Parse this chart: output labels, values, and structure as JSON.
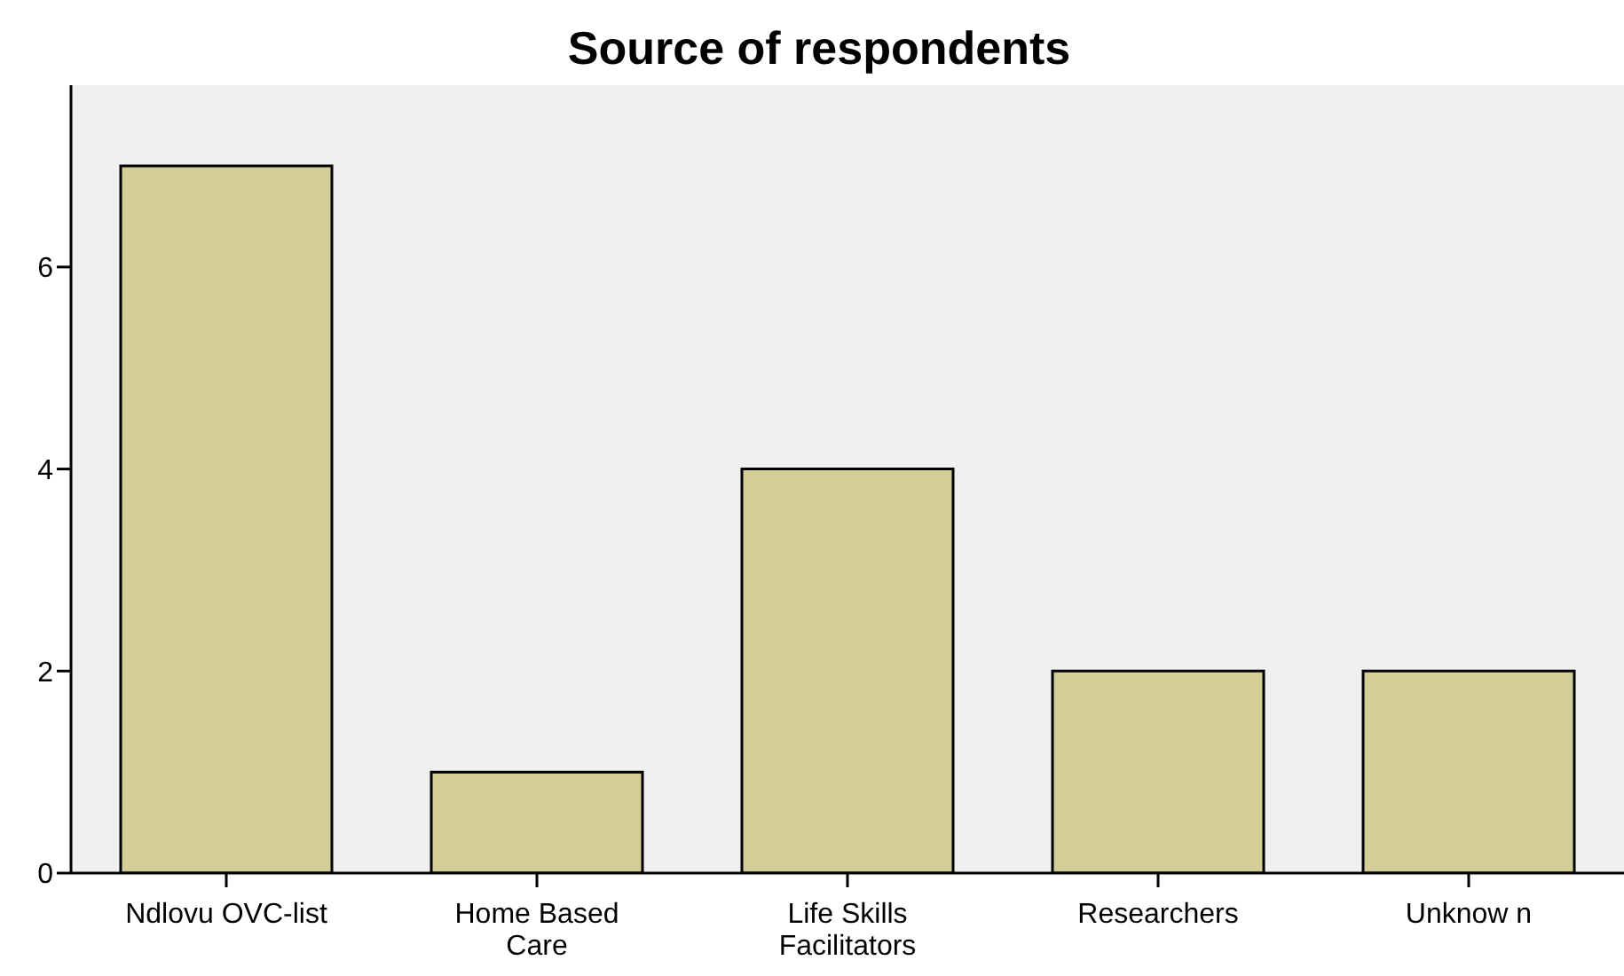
{
  "chart_data": {
    "type": "bar",
    "title": "Source of respondents",
    "categories": [
      "Ndlovu OVC-list",
      "Home Based Care",
      "Life Skills Facilitators",
      "Researchers",
      "Unknow n"
    ],
    "values": [
      7,
      1,
      4,
      2,
      2
    ],
    "color": "#d3ce97",
    "ylim": [
      0,
      7.8
    ],
    "yticks": [
      0,
      2,
      4,
      6
    ],
    "grid": false
  }
}
